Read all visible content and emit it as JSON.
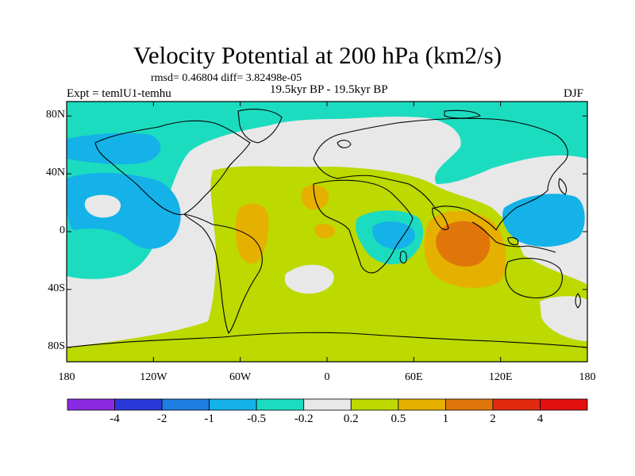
{
  "title": "Velocity Potential at 200 hPa (km2/s)",
  "stats": "rmsd= 0.46804 diff= 3.82498e-05",
  "experiment": "Expt = temlU1-temhu",
  "period": "19.5kyr BP - 19.5kyr BP",
  "season": "DJF",
  "map": {
    "lon_range": [
      -180,
      180
    ],
    "lat_range": [
      -90,
      90
    ],
    "x_ticks": [
      {
        "lon": -180,
        "label": "180"
      },
      {
        "lon": -120,
        "label": "120W"
      },
      {
        "lon": -60,
        "label": "60W"
      },
      {
        "lon": 0,
        "label": "0"
      },
      {
        "lon": 60,
        "label": "60E"
      },
      {
        "lon": 120,
        "label": "120E"
      },
      {
        "lon": 180,
        "label": "180"
      }
    ],
    "y_ticks": [
      {
        "lat": 80,
        "label": "80N"
      },
      {
        "lat": 40,
        "label": "40N"
      },
      {
        "lat": 0,
        "label": "0"
      },
      {
        "lat": -40,
        "label": "40S"
      },
      {
        "lat": -80,
        "label": "80S"
      }
    ]
  },
  "colorbar": {
    "levels": [
      "-4",
      "-2",
      "-1",
      "-0.5",
      "-0.2",
      "0.2",
      "0.5",
      "1",
      "2",
      "4"
    ],
    "colors": [
      "#8a2be2",
      "#2b38d9",
      "#1e7de0",
      "#14b2e8",
      "#1cdcc0",
      "#e8e8e8",
      "#bcd900",
      "#e6b000",
      "#e0760a",
      "#e02a10",
      "#e21010"
    ]
  },
  "colors": {
    "land_outline": "#000000",
    "background": "#ffffff"
  }
}
